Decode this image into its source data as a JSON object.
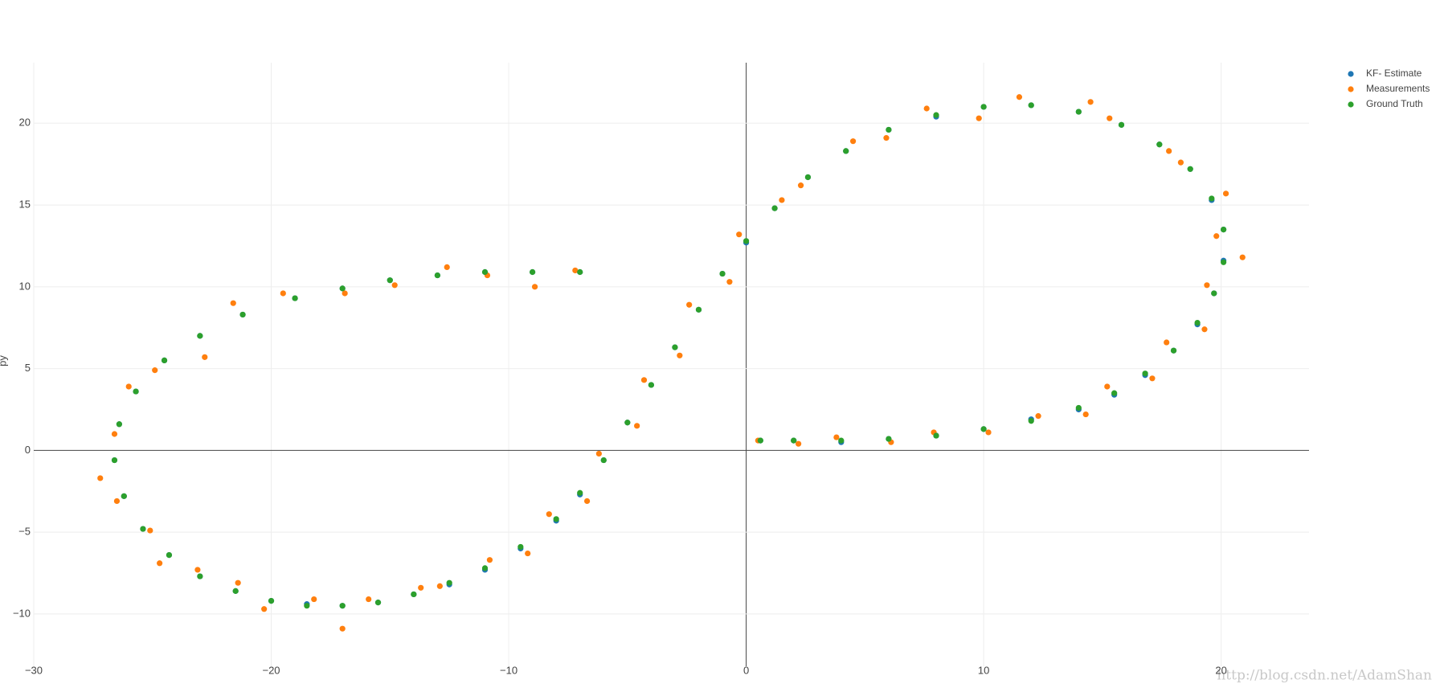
{
  "chart_data": {
    "type": "scatter",
    "ylabel": "py",
    "watermark": "http://blog.csdn.net/AdamShan",
    "xlim": [
      -30,
      23.7
    ],
    "ylim": [
      -13.2,
      23.7
    ],
    "xticks": [
      {
        "value": -30,
        "label": "−30"
      },
      {
        "value": -20,
        "label": "−20"
      },
      {
        "value": -10,
        "label": "−10"
      },
      0,
      10,
      20
    ],
    "yticks": [
      {
        "value": -10,
        "label": "−10"
      },
      {
        "value": -5,
        "label": "−5"
      },
      0,
      5,
      10,
      15,
      20
    ],
    "grid": true,
    "zeroline": true,
    "legend": "top-right",
    "series": [
      {
        "name": "KF- Estimate",
        "color": "#1f77b4",
        "x": [
          0.6,
          2,
          4,
          6,
          8,
          10,
          12,
          14,
          15.5,
          16.8,
          18,
          19,
          19.7,
          20.1,
          20.1,
          19.6,
          18.7,
          17.4,
          15.8,
          14,
          12,
          10,
          8,
          6,
          4.2,
          2.6,
          1.2,
          0,
          -1,
          -2,
          -3,
          -4,
          -5,
          -6,
          -7,
          -8,
          -9.5,
          -11,
          -12.5,
          -14,
          -15.5,
          -17,
          -18.5,
          -20,
          -21.5,
          -23,
          -24.3,
          -25.4,
          -26.2,
          -26.6,
          -26.4,
          -25.7,
          -24.5,
          -23,
          -21.2,
          -19,
          -17,
          -15,
          -13,
          -11,
          -9,
          -7
        ],
        "values": [
          0.6,
          0.6,
          0.5,
          0.7,
          0.9,
          1.3,
          1.9,
          2.5,
          3.4,
          4.6,
          6.1,
          7.7,
          9.6,
          11.6,
          13.5,
          15.3,
          17.2,
          18.7,
          19.9,
          20.7,
          21.1,
          21,
          20.4,
          19.6,
          18.3,
          16.7,
          14.8,
          12.7,
          10.8,
          8.6,
          6.3,
          4,
          1.7,
          -0.6,
          -2.7,
          -4.3,
          -6,
          -7.3,
          -8.2,
          -8.8,
          -9.3,
          -9.5,
          -9.4,
          -9.2,
          -8.6,
          -7.7,
          -6.4,
          -4.8,
          -2.8,
          -0.6,
          1.6,
          3.6,
          5.5,
          7,
          8.3,
          9.3,
          9.9,
          10.4,
          10.7,
          10.9,
          10.9,
          10.9
        ]
      },
      {
        "name": "Measurements",
        "color": "#ff7f0e",
        "x": [
          0.5,
          2.2,
          3.8,
          6.1,
          7.9,
          10.2,
          12.3,
          14.3,
          15.2,
          17.1,
          17.7,
          19.3,
          19.4,
          20.9,
          19.8,
          20.2,
          18.3,
          17.8,
          15.3,
          14.5,
          11.5,
          9.8,
          7.6,
          5.9,
          4.5,
          2.3,
          1.5,
          -0.3,
          -0.7,
          -2.4,
          -2.8,
          -4.3,
          -4.6,
          -6.2,
          -6.7,
          -8.3,
          -9.2,
          -10.8,
          -12.9,
          -13.7,
          -15.9,
          -17,
          -18.2,
          -20.3,
          -21.4,
          -23.1,
          -24.7,
          -25.1,
          -26.5,
          -27.2,
          -26.6,
          -26,
          -24.9,
          -22.8,
          -21.6,
          -19.5,
          -16.9,
          -14.8,
          -12.6,
          -10.9,
          -8.9,
          -7.2
        ],
        "values": [
          0.6,
          0.4,
          0.8,
          0.5,
          1.1,
          1.1,
          2.1,
          2.2,
          3.9,
          4.4,
          6.6,
          7.4,
          10.1,
          11.8,
          13.1,
          15.7,
          17.6,
          18.3,
          20.3,
          21.3,
          21.6,
          20.3,
          20.9,
          19.1,
          18.9,
          16.2,
          15.3,
          13.2,
          10.3,
          8.9,
          5.8,
          4.3,
          1.5,
          -0.2,
          -3.1,
          -3.9,
          -6.3,
          -6.7,
          -8.3,
          -8.4,
          -9.1,
          -10.9,
          -9.1,
          -9.7,
          -8.1,
          -7.3,
          -6.9,
          -4.9,
          -3.1,
          -1.7,
          1,
          3.9,
          4.9,
          5.7,
          9,
          9.6,
          9.6,
          10.1,
          11.2,
          10.7,
          10,
          11
        ]
      },
      {
        "name": "Ground Truth",
        "color": "#2ca02c",
        "x": [
          0.6,
          2,
          4,
          6,
          8,
          10,
          12,
          14,
          15.5,
          16.8,
          18,
          19,
          19.7,
          20.1,
          20.1,
          19.6,
          18.7,
          17.4,
          15.8,
          14,
          12,
          10,
          8,
          6,
          4.2,
          2.6,
          1.2,
          0,
          -1,
          -2,
          -3,
          -4,
          -5,
          -6,
          -7,
          -8,
          -9.5,
          -11,
          -12.5,
          -14,
          -15.5,
          -17,
          -18.5,
          -20,
          -21.5,
          -23,
          -24.3,
          -25.4,
          -26.2,
          -26.6,
          -26.4,
          -25.7,
          -24.5,
          -23,
          -21.2,
          -19,
          -17,
          -15,
          -13,
          -11,
          -9,
          -7
        ],
        "values": [
          0.6,
          0.6,
          0.6,
          0.7,
          0.9,
          1.3,
          1.8,
          2.6,
          3.5,
          4.7,
          6.1,
          7.8,
          9.6,
          11.5,
          13.5,
          15.4,
          17.2,
          18.7,
          19.9,
          20.7,
          21.1,
          21,
          20.5,
          19.6,
          18.3,
          16.7,
          14.8,
          12.8,
          10.8,
          8.6,
          6.3,
          4,
          1.7,
          -0.6,
          -2.6,
          -4.2,
          -5.9,
          -7.2,
          -8.1,
          -8.8,
          -9.3,
          -9.5,
          -9.5,
          -9.2,
          -8.6,
          -7.7,
          -6.4,
          -4.8,
          -2.8,
          -0.6,
          1.6,
          3.6,
          5.5,
          7,
          8.3,
          9.3,
          9.9,
          10.4,
          10.7,
          10.9,
          10.9,
          10.9
        ]
      }
    ]
  }
}
